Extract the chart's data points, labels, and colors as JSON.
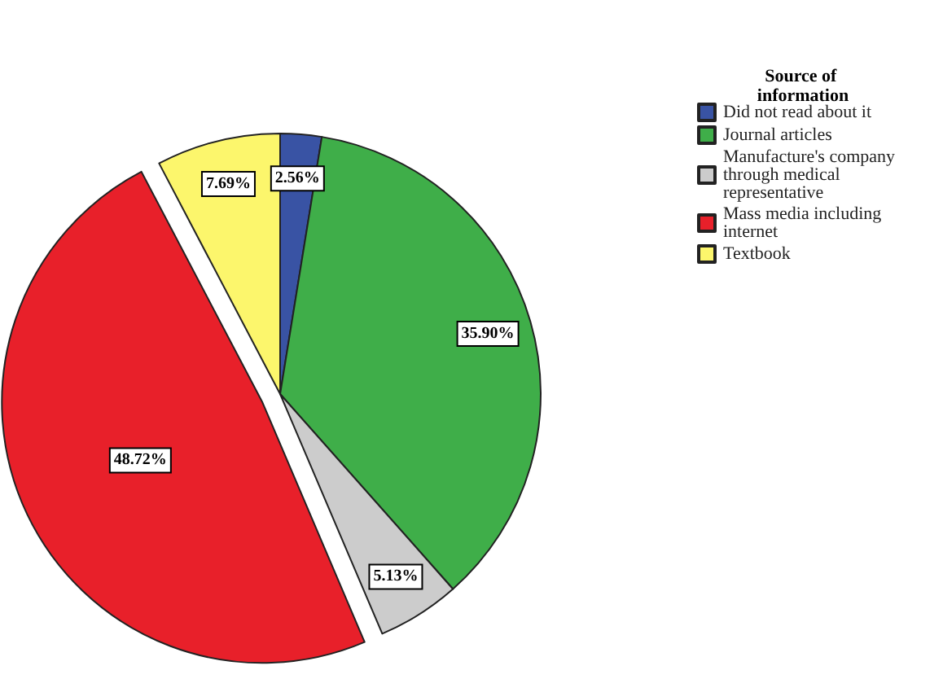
{
  "chart_data": {
    "type": "pie",
    "legend_title": "Source of information",
    "categories": [
      "Did not read about it",
      "Journal articles",
      "Manufacture's company through medical representative",
      "Mass media including internet",
      "Textbook"
    ],
    "values": [
      2.56,
      35.9,
      5.13,
      48.72,
      7.69
    ],
    "value_labels": [
      "2.56%",
      "35.90%",
      "5.13%",
      "48.72%",
      "7.69%"
    ],
    "colors": [
      "#3953a4",
      "#3fae49",
      "#cccccc",
      "#e8202a",
      "#fcf66c"
    ],
    "legend": "top right"
  }
}
